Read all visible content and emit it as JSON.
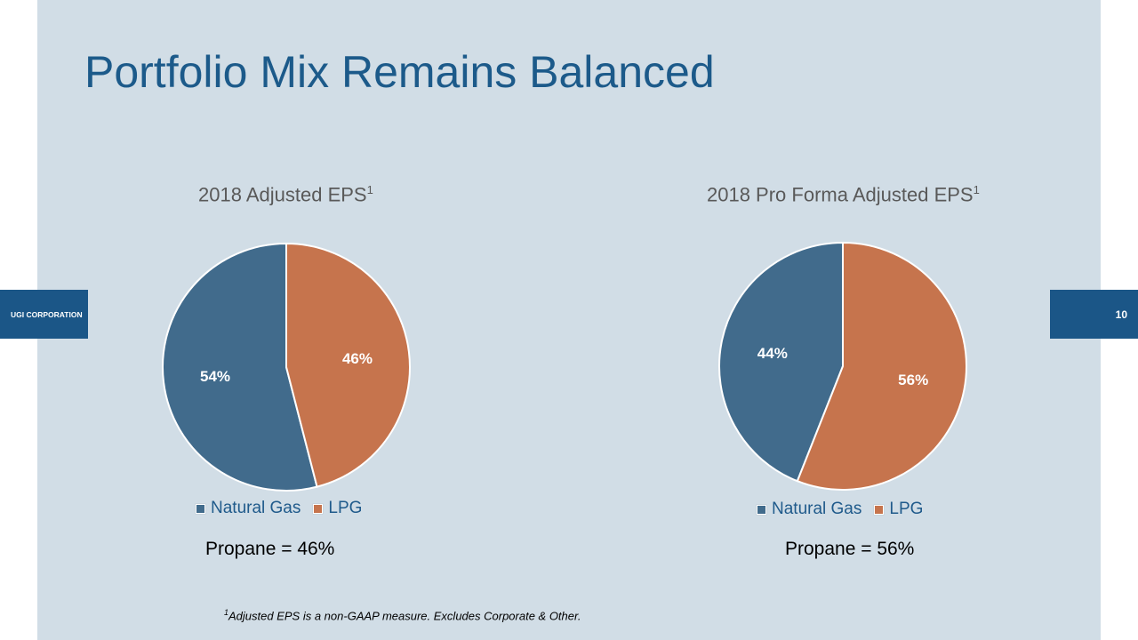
{
  "title": "Portfolio Mix Remains Balanced",
  "side_left": "UGI CORPORATION",
  "page_number": "10",
  "colors": {
    "natural_gas": "#416b8c",
    "lpg": "#c6744d",
    "panel": "#d1dde6",
    "title": "#1c5a8a"
  },
  "chart_data": [
    {
      "type": "pie",
      "title": "2018 Adjusted EPS",
      "title_superscript": "1",
      "categories": [
        "Natural Gas",
        "LPG"
      ],
      "values": [
        54,
        46
      ],
      "data_labels": [
        "54%",
        "46%"
      ],
      "legend_position": "bottom",
      "note": "Propane = 46%"
    },
    {
      "type": "pie",
      "title": "2018 Pro Forma Adjusted EPS",
      "title_superscript": "1",
      "categories": [
        "Natural Gas",
        "LPG"
      ],
      "values": [
        44,
        56
      ],
      "data_labels": [
        "44%",
        "56%"
      ],
      "legend_position": "bottom",
      "note": "Propane = 56%"
    }
  ],
  "footnote": {
    "marker": "1",
    "text": "Adjusted EPS is a non-GAAP measure.  Excludes Corporate & Other."
  }
}
